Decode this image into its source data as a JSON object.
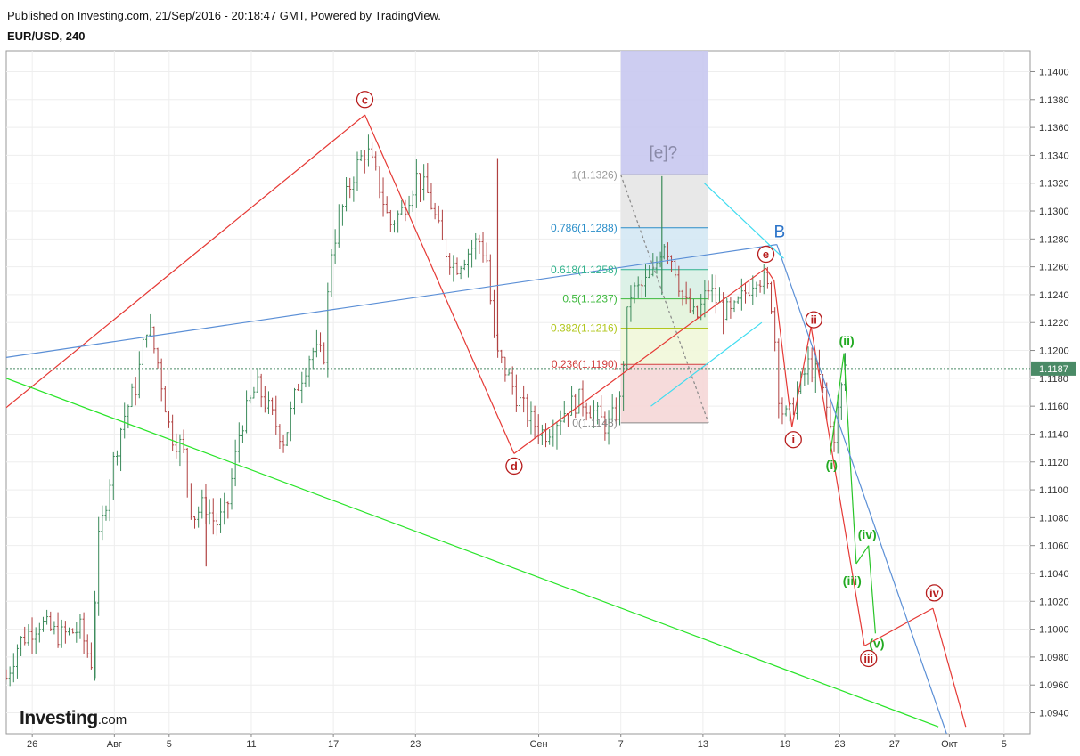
{
  "header": {
    "published": "Published on Investing.com, 21/Sep/2016 - 20:18:47 GMT, Powered by TradingView.",
    "symbol": "EUR/USD, 240"
  },
  "logo": {
    "main": "Investing",
    "suffix": ".com"
  },
  "colors": {
    "up": "#3a8a5a",
    "down": "#b04040",
    "wave_red": "#e53935",
    "wave_green": "#29c429",
    "trend_blue": "#5b8fd6",
    "cyan": "#3fdcf0",
    "last_price_bg": "#4a8a66"
  },
  "chart_data": {
    "type": "ohlc",
    "x_ticks": [
      {
        "label": "26",
        "day": -6
      },
      {
        "label": "Авг",
        "day": 0
      },
      {
        "label": "5",
        "day": 4
      },
      {
        "label": "11",
        "day": 10
      },
      {
        "label": "17",
        "day": 16
      },
      {
        "label": "23",
        "day": 22
      },
      {
        "label": "Сен",
        "day": 31
      },
      {
        "label": "7",
        "day": 37
      },
      {
        "label": "13",
        "day": 43
      },
      {
        "label": "19",
        "day": 49
      },
      {
        "label": "23",
        "day": 53
      },
      {
        "label": "27",
        "day": 57
      },
      {
        "label": "Окт",
        "day": 61
      },
      {
        "label": "5",
        "day": 65
      }
    ],
    "y_ticks": [
      "1.0940",
      "1.0960",
      "1.0980",
      "1.1000",
      "1.1020",
      "1.1040",
      "1.1060",
      "1.1080",
      "1.1100",
      "1.1120",
      "1.1140",
      "1.1160",
      "1.1180",
      "1.1200",
      "1.1220",
      "1.1240",
      "1.1260",
      "1.1280",
      "1.1300",
      "1.1320",
      "1.1340",
      "1.1360",
      "1.1380",
      "1.1400"
    ],
    "ylim": [
      1.0925,
      1.1415
    ],
    "xlim_day": [
      -7.9,
      66.9
    ],
    "last_price": "1.1187",
    "price_path": [
      [
        -7.9,
        1.0965
      ],
      [
        -7,
        1.099
      ],
      [
        -5.5,
        1.1005
      ],
      [
        -4,
        1.0995
      ],
      [
        -2.5,
        1.1
      ],
      [
        -1.7,
        1.0975
      ],
      [
        -1.2,
        1.106
      ],
      [
        -0.3,
        1.111
      ],
      [
        0.6,
        1.115
      ],
      [
        1.6,
        1.1175
      ],
      [
        2.4,
        1.122
      ],
      [
        3.2,
        1.119
      ],
      [
        4.1,
        1.114
      ],
      [
        5.0,
        1.113
      ],
      [
        5.7,
        1.108
      ],
      [
        6.6,
        1.109
      ],
      [
        7.4,
        1.1075
      ],
      [
        8.2,
        1.1085
      ],
      [
        9.2,
        1.1145
      ],
      [
        10.4,
        1.1175
      ],
      [
        11.4,
        1.1155
      ],
      [
        12.4,
        1.1135
      ],
      [
        13.4,
        1.1175
      ],
      [
        14.4,
        1.12
      ],
      [
        15.3,
        1.1195
      ],
      [
        15.8,
        1.127
      ],
      [
        16.6,
        1.13
      ],
      [
        17.6,
        1.133
      ],
      [
        18.4,
        1.1345
      ],
      [
        19.3,
        1.132
      ],
      [
        20.1,
        1.129
      ],
      [
        21.0,
        1.13
      ],
      [
        22.1,
        1.1325
      ],
      [
        23.0,
        1.131
      ],
      [
        24.0,
        1.1275
      ],
      [
        24.9,
        1.126
      ],
      [
        25.8,
        1.127
      ],
      [
        26.6,
        1.128
      ],
      [
        27.2,
        1.1265
      ],
      [
        27.8,
        1.12
      ],
      [
        28.6,
        1.1185
      ],
      [
        29.5,
        1.1165
      ],
      [
        30.4,
        1.115
      ],
      [
        31.4,
        1.114
      ],
      [
        32.3,
        1.115
      ],
      [
        33.2,
        1.116
      ],
      [
        34.1,
        1.1165
      ],
      [
        35.1,
        1.1155
      ],
      [
        36.0,
        1.1145
      ],
      [
        36.9,
        1.116
      ],
      [
        37.6,
        1.124
      ],
      [
        38.5,
        1.1245
      ],
      [
        39.4,
        1.1255
      ],
      [
        40.1,
        1.128
      ],
      [
        40.9,
        1.1262
      ],
      [
        41.6,
        1.1235
      ],
      [
        42.5,
        1.1222
      ],
      [
        43.4,
        1.1245
      ],
      [
        44.3,
        1.123
      ],
      [
        45.1,
        1.1225
      ],
      [
        46.0,
        1.124
      ],
      [
        46.9,
        1.1255
      ],
      [
        47.6,
        1.1248
      ],
      [
        48.1,
        1.123
      ],
      [
        48.6,
        1.116
      ],
      [
        49.2,
        1.115
      ],
      [
        49.9,
        1.117
      ],
      [
        50.7,
        1.119
      ],
      [
        51.5,
        1.118
      ],
      [
        52.0,
        1.116
      ],
      [
        52.5,
        1.1135
      ],
      [
        53.0,
        1.1165
      ],
      [
        53.4,
        1.119
      ]
    ],
    "big_candles": [
      {
        "day": 40.0,
        "o": 1.1245,
        "h": 1.1325,
        "l": 1.124,
        "c": 1.126
      },
      {
        "day": 28.0,
        "o": 1.1335,
        "h": 1.1338,
        "l": 1.12,
        "c": 1.1215
      },
      {
        "day": -1.4,
        "o": 1.097,
        "h": 1.102,
        "l": 1.0965,
        "c": 1.101
      },
      {
        "day": 6.7,
        "o": 1.109,
        "h": 1.1095,
        "l": 1.1045,
        "c": 1.106
      }
    ],
    "fib": {
      "day_from": 37.0,
      "day_to": 43.4,
      "levels": [
        {
          "label": "1(1.1326)",
          "price": 1.1326,
          "color": "#9a9a9a",
          "fill": "#e5e5e5"
        },
        {
          "label": "0.786(1.1288)",
          "price": 1.1288,
          "color": "#2a8ec9",
          "fill": "#d4e8f4"
        },
        {
          "label": "0.618(1.1258)",
          "price": 1.1258,
          "color": "#2fb28b",
          "fill": "#d8f0e4"
        },
        {
          "label": "0.5(1.1237)",
          "price": 1.1237,
          "color": "#3cb83c",
          "fill": "#e2f3da"
        },
        {
          "label": "0.382(1.1216)",
          "price": 1.1216,
          "color": "#b2c71e",
          "fill": "#f1f7d9"
        },
        {
          "label": "0.236(1.1190)",
          "price": 1.119,
          "color": "#d24040",
          "fill": "#f5d7d7"
        },
        {
          "label": "0(1.1148)",
          "price": 1.1148,
          "color": "#888888",
          "fill": null
        }
      ]
    },
    "time_zone": {
      "day_from": 37.0,
      "day_to": 43.4,
      "price_top": 1.1415,
      "price_bottom": 1.1326,
      "color": "#c8c8f0"
    },
    "lines": [
      {
        "name": "red-wave-a-c",
        "color": "#e53935",
        "points": [
          [
            -7.9,
            1.1159
          ],
          [
            18.3,
            1.1369
          ]
        ]
      },
      {
        "name": "red-wave-c-d",
        "color": "#e53935",
        "points": [
          [
            18.3,
            1.1369
          ],
          [
            29.2,
            1.1126
          ]
        ]
      },
      {
        "name": "red-channel-d-e",
        "color": "#e53935",
        "points": [
          [
            29.2,
            1.1126
          ],
          [
            47.6,
            1.1259
          ]
        ]
      },
      {
        "name": "red-wave-e-i",
        "color": "#e53935",
        "points": [
          [
            47.6,
            1.1259
          ],
          [
            48.2,
            1.125
          ],
          [
            49.5,
            1.1145
          ]
        ]
      },
      {
        "name": "red-wave-i-ii",
        "color": "#e53935",
        "points": [
          [
            49.5,
            1.1145
          ],
          [
            50.9,
            1.1217
          ]
        ]
      },
      {
        "name": "red-wave-ii-iii",
        "color": "#e53935",
        "points": [
          [
            50.9,
            1.1217
          ],
          [
            54.8,
            1.0988
          ]
        ]
      },
      {
        "name": "red-wave-iii-iv",
        "color": "#e53935",
        "points": [
          [
            54.8,
            1.0988
          ],
          [
            59.8,
            1.1015
          ]
        ]
      },
      {
        "name": "red-wave-iv-v",
        "color": "#e53935",
        "points": [
          [
            59.8,
            1.1015
          ],
          [
            62.2,
            1.093
          ]
        ]
      },
      {
        "name": "green-wave-i-ii",
        "color": "#29c429",
        "points": [
          [
            52.3,
            1.1125
          ],
          [
            53.3,
            1.1198
          ]
        ]
      },
      {
        "name": "green-wave-ii-iii",
        "color": "#29c429",
        "points": [
          [
            53.3,
            1.1198
          ],
          [
            54.2,
            1.1047
          ]
        ]
      },
      {
        "name": "green-wave-iii-iv",
        "color": "#29c429",
        "points": [
          [
            54.2,
            1.1047
          ],
          [
            55.1,
            1.106
          ]
        ]
      },
      {
        "name": "green-wave-iv-v",
        "color": "#29c429",
        "points": [
          [
            55.1,
            1.106
          ],
          [
            55.6,
            1.0997
          ]
        ]
      },
      {
        "name": "green-support-line",
        "color": "#29e429",
        "points": [
          [
            -7.9,
            1.118
          ],
          [
            60.2,
            1.093
          ]
        ]
      },
      {
        "name": "blue-trend-line",
        "color": "#5b8fd6",
        "points": [
          [
            -7.9,
            1.1195
          ],
          [
            48.4,
            1.1276
          ]
        ]
      },
      {
        "name": "blue-down-line",
        "color": "#5b8fd6",
        "points": [
          [
            48.4,
            1.1276
          ],
          [
            60.8,
            1.0925
          ]
        ]
      },
      {
        "name": "cyan-upper",
        "color": "#3fdcf0",
        "points": [
          [
            43.1,
            1.132
          ],
          [
            48.9,
            1.1266
          ]
        ]
      },
      {
        "name": "cyan-lower",
        "color": "#3fdcf0",
        "points": [
          [
            39.2,
            1.116
          ],
          [
            47.3,
            1.122
          ]
        ]
      },
      {
        "name": "grey-dashed",
        "color": "#888888",
        "dash": true,
        "points": [
          [
            37.0,
            1.1326
          ],
          [
            43.4,
            1.1148
          ]
        ]
      }
    ],
    "wave_labels": [
      {
        "text": "c",
        "day": 18.3,
        "price": 1.138,
        "style": "red-circle"
      },
      {
        "text": "d",
        "day": 29.2,
        "price": 1.1117,
        "style": "red-circle"
      },
      {
        "text": "e",
        "day": 47.6,
        "price": 1.1269,
        "style": "red-circle"
      },
      {
        "text": "i",
        "day": 49.6,
        "price": 1.1136,
        "style": "red-circle"
      },
      {
        "text": "ii",
        "day": 51.1,
        "price": 1.1222,
        "style": "red-circle"
      },
      {
        "text": "iii",
        "day": 55.1,
        "price": 1.0979,
        "style": "red-circle"
      },
      {
        "text": "iv",
        "day": 59.9,
        "price": 1.1026,
        "style": "red-circle"
      },
      {
        "text": "(i)",
        "day": 52.4,
        "price": 1.1118,
        "style": "green"
      },
      {
        "text": "(ii)",
        "day": 53.5,
        "price": 1.1207,
        "style": "green"
      },
      {
        "text": "(iii)",
        "day": 53.9,
        "price": 1.1035,
        "style": "green"
      },
      {
        "text": "(iv)",
        "day": 55.0,
        "price": 1.1068,
        "style": "green"
      },
      {
        "text": "(v)",
        "day": 55.7,
        "price": 1.099,
        "style": "green"
      },
      {
        "text": "B",
        "day": 48.6,
        "price": 1.1285,
        "style": "blue"
      },
      {
        "text": "[e]?",
        "day": 40.1,
        "price": 1.1342,
        "style": "grey"
      }
    ]
  }
}
